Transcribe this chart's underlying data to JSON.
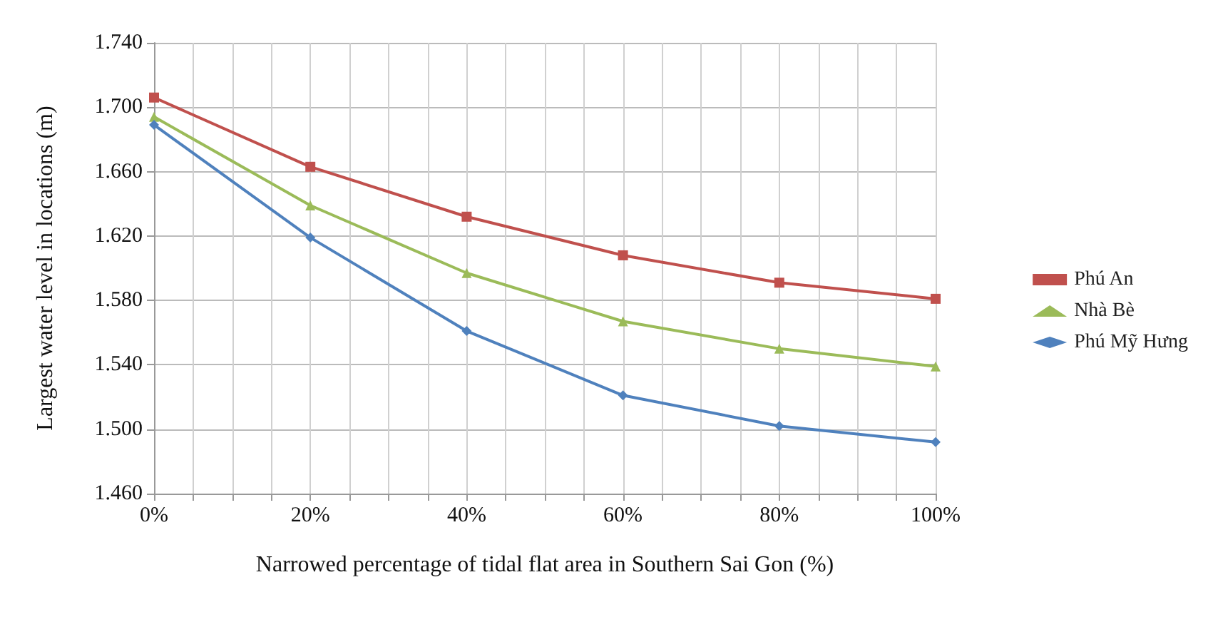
{
  "chart_data": {
    "type": "line",
    "xlabel": "Narrowed percentage of tidal flat area in Southern Sai Gon (%)",
    "ylabel": "Largest water level in locations (m)",
    "x": [
      0,
      20,
      40,
      60,
      80,
      100
    ],
    "series": [
      {
        "name": "Phú An",
        "color": "#c0504d",
        "marker": "square",
        "values": [
          1.706,
          1.663,
          1.632,
          1.608,
          1.591,
          1.581
        ]
      },
      {
        "name": "Nhà Bè",
        "color": "#9bbb59",
        "marker": "triangle",
        "values": [
          1.694,
          1.639,
          1.597,
          1.567,
          1.55,
          1.539
        ]
      },
      {
        "name": "Phú Mỹ Hưng",
        "color": "#4f81bd",
        "marker": "diamond",
        "values": [
          1.689,
          1.619,
          1.561,
          1.521,
          1.502,
          1.492
        ]
      }
    ],
    "xlim": [
      0,
      100
    ],
    "xticks": [
      {
        "value": 0,
        "label": "0%"
      },
      {
        "value": 5,
        "label": null
      },
      {
        "value": 10,
        "label": null
      },
      {
        "value": 15,
        "label": null
      },
      {
        "value": 20,
        "label": "20%"
      },
      {
        "value": 25,
        "label": null
      },
      {
        "value": 30,
        "label": null
      },
      {
        "value": 35,
        "label": null
      },
      {
        "value": 40,
        "label": "40%"
      },
      {
        "value": 45,
        "label": null
      },
      {
        "value": 50,
        "label": null
      },
      {
        "value": 55,
        "label": null
      },
      {
        "value": 60,
        "label": "60%"
      },
      {
        "value": 65,
        "label": null
      },
      {
        "value": 70,
        "label": null
      },
      {
        "value": 75,
        "label": null
      },
      {
        "value": 80,
        "label": "80%"
      },
      {
        "value": 85,
        "label": null
      },
      {
        "value": 90,
        "label": null
      },
      {
        "value": 95,
        "label": null
      },
      {
        "value": 100,
        "label": "100%"
      }
    ],
    "ylim": [
      1.46,
      1.74
    ],
    "yticks": [
      {
        "value": 1.46,
        "label": "1.460"
      },
      {
        "value": 1.5,
        "label": "1.500"
      },
      {
        "value": 1.54,
        "label": "1.540"
      },
      {
        "value": 1.58,
        "label": "1.580"
      },
      {
        "value": 1.62,
        "label": "1.620"
      },
      {
        "value": 1.66,
        "label": "1.660"
      },
      {
        "value": 1.7,
        "label": "1.700"
      },
      {
        "value": 1.74,
        "label": "1.740"
      }
    ],
    "grid": true,
    "legend": "right",
    "line_style": "solid"
  }
}
